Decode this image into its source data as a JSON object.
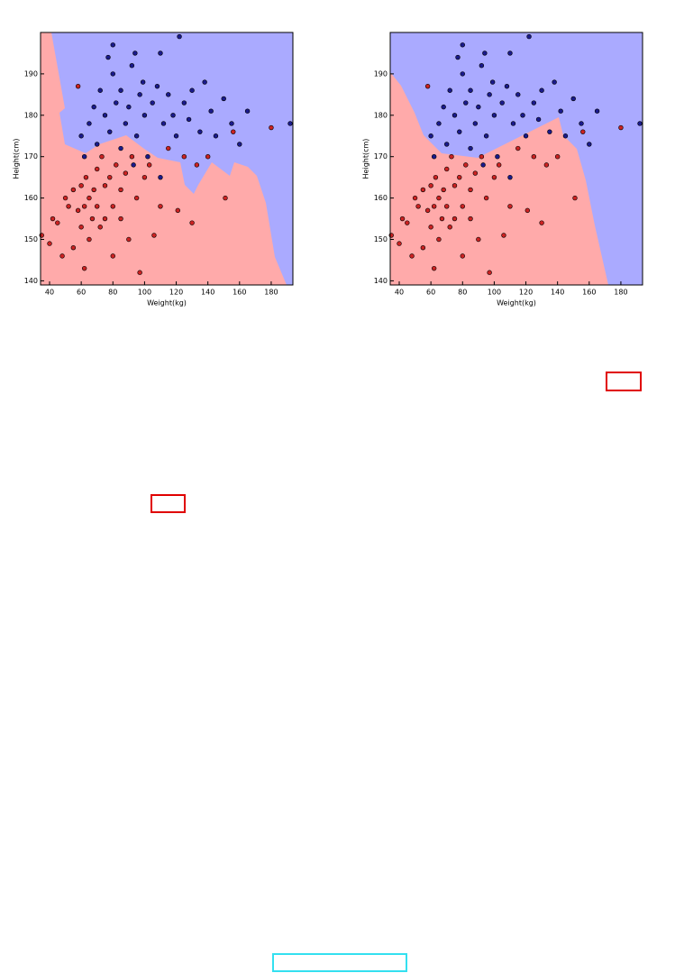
{
  "chart_data": [
    {
      "type": "scatter",
      "xlabel": "Weight(kg)",
      "ylabel": "Height(cm)",
      "xlim": [
        34.3,
        193.7
      ],
      "ylim": [
        139,
        200
      ],
      "xticks": [
        40,
        60,
        80,
        100,
        120,
        140,
        160,
        180
      ],
      "yticks": [
        140,
        150,
        160,
        170,
        180,
        190
      ],
      "series": [
        {
          "color": "#cc2222",
          "x": [
            35,
            40,
            42,
            45,
            48,
            50,
            52,
            55,
            55,
            58,
            58,
            60,
            60,
            62,
            62,
            63,
            65,
            65,
            67,
            68,
            70,
            70,
            72,
            73,
            75,
            75,
            78,
            80,
            80,
            82,
            85,
            85,
            88,
            90,
            92,
            95,
            97,
            100,
            103,
            106,
            110,
            115,
            121,
            125,
            130,
            133,
            140,
            151,
            156,
            180
          ],
          "values": [
            151,
            149,
            155,
            154,
            146,
            160,
            158,
            162,
            148,
            157,
            187,
            163,
            153,
            143,
            158,
            165,
            160,
            150,
            155,
            162,
            158,
            167,
            153,
            170,
            163,
            155,
            165,
            158,
            146,
            168,
            162,
            155,
            166,
            150,
            170,
            160,
            142,
            165,
            168,
            151,
            158,
            172,
            157,
            170,
            154,
            168,
            170,
            160,
            176,
            177
          ]
        },
        {
          "color": "#1a1a8c",
          "x": [
            60,
            62,
            65,
            68,
            70,
            72,
            75,
            77,
            78,
            80,
            80,
            82,
            85,
            85,
            88,
            90,
            92,
            94,
            95,
            97,
            99,
            100,
            102,
            105,
            108,
            110,
            112,
            115,
            118,
            120,
            122,
            125,
            128,
            130,
            135,
            138,
            142,
            145,
            150,
            155,
            160,
            165,
            192,
            110,
            93
          ],
          "values": [
            175,
            170,
            178,
            182,
            173,
            186,
            180,
            194,
            176,
            190,
            197,
            183,
            172,
            186,
            178,
            182,
            192,
            195,
            175,
            185,
            188,
            180,
            170,
            183,
            187,
            195,
            178,
            185,
            180,
            175,
            199,
            183,
            179,
            186,
            176,
            188,
            181,
            175,
            184,
            178,
            173,
            181,
            178,
            165,
            168
          ]
        }
      ]
    },
    {
      "type": "scatter",
      "xlabel": "Weight(kg)",
      "ylabel": "Height(cm)",
      "xlim": [
        34.3,
        193.7
      ],
      "ylim": [
        139,
        200
      ],
      "xticks": [
        40,
        60,
        80,
        100,
        120,
        140,
        160,
        180
      ],
      "yticks": [
        140,
        150,
        160,
        170,
        180,
        190
      ],
      "series": [
        {
          "color": "#cc2222",
          "x": [
            35,
            40,
            42,
            45,
            48,
            50,
            52,
            55,
            55,
            58,
            58,
            60,
            60,
            62,
            62,
            63,
            65,
            65,
            67,
            68,
            70,
            70,
            72,
            73,
            75,
            75,
            78,
            80,
            80,
            82,
            85,
            85,
            88,
            90,
            92,
            95,
            97,
            100,
            103,
            106,
            110,
            115,
            121,
            125,
            130,
            133,
            140,
            151,
            156,
            180
          ],
          "values": [
            151,
            149,
            155,
            154,
            146,
            160,
            158,
            162,
            148,
            157,
            187,
            163,
            153,
            143,
            158,
            165,
            160,
            150,
            155,
            162,
            158,
            167,
            153,
            170,
            163,
            155,
            165,
            158,
            146,
            168,
            162,
            155,
            166,
            150,
            170,
            160,
            142,
            165,
            168,
            151,
            158,
            172,
            157,
            170,
            154,
            168,
            170,
            160,
            176,
            177
          ]
        },
        {
          "color": "#1a1a8c",
          "x": [
            60,
            62,
            65,
            68,
            70,
            72,
            75,
            77,
            78,
            80,
            80,
            82,
            85,
            85,
            88,
            90,
            92,
            94,
            95,
            97,
            99,
            100,
            102,
            105,
            108,
            110,
            112,
            115,
            118,
            120,
            122,
            125,
            128,
            130,
            135,
            138,
            142,
            145,
            150,
            155,
            160,
            165,
            192,
            110,
            93
          ],
          "values": [
            175,
            170,
            178,
            182,
            173,
            186,
            180,
            194,
            176,
            190,
            197,
            183,
            172,
            186,
            178,
            182,
            192,
            195,
            175,
            185,
            188,
            180,
            170,
            183,
            187,
            195,
            178,
            185,
            180,
            175,
            199,
            183,
            179,
            186,
            176,
            188,
            181,
            175,
            184,
            178,
            173,
            181,
            178,
            165,
            168
          ]
        }
      ]
    }
  ]
}
